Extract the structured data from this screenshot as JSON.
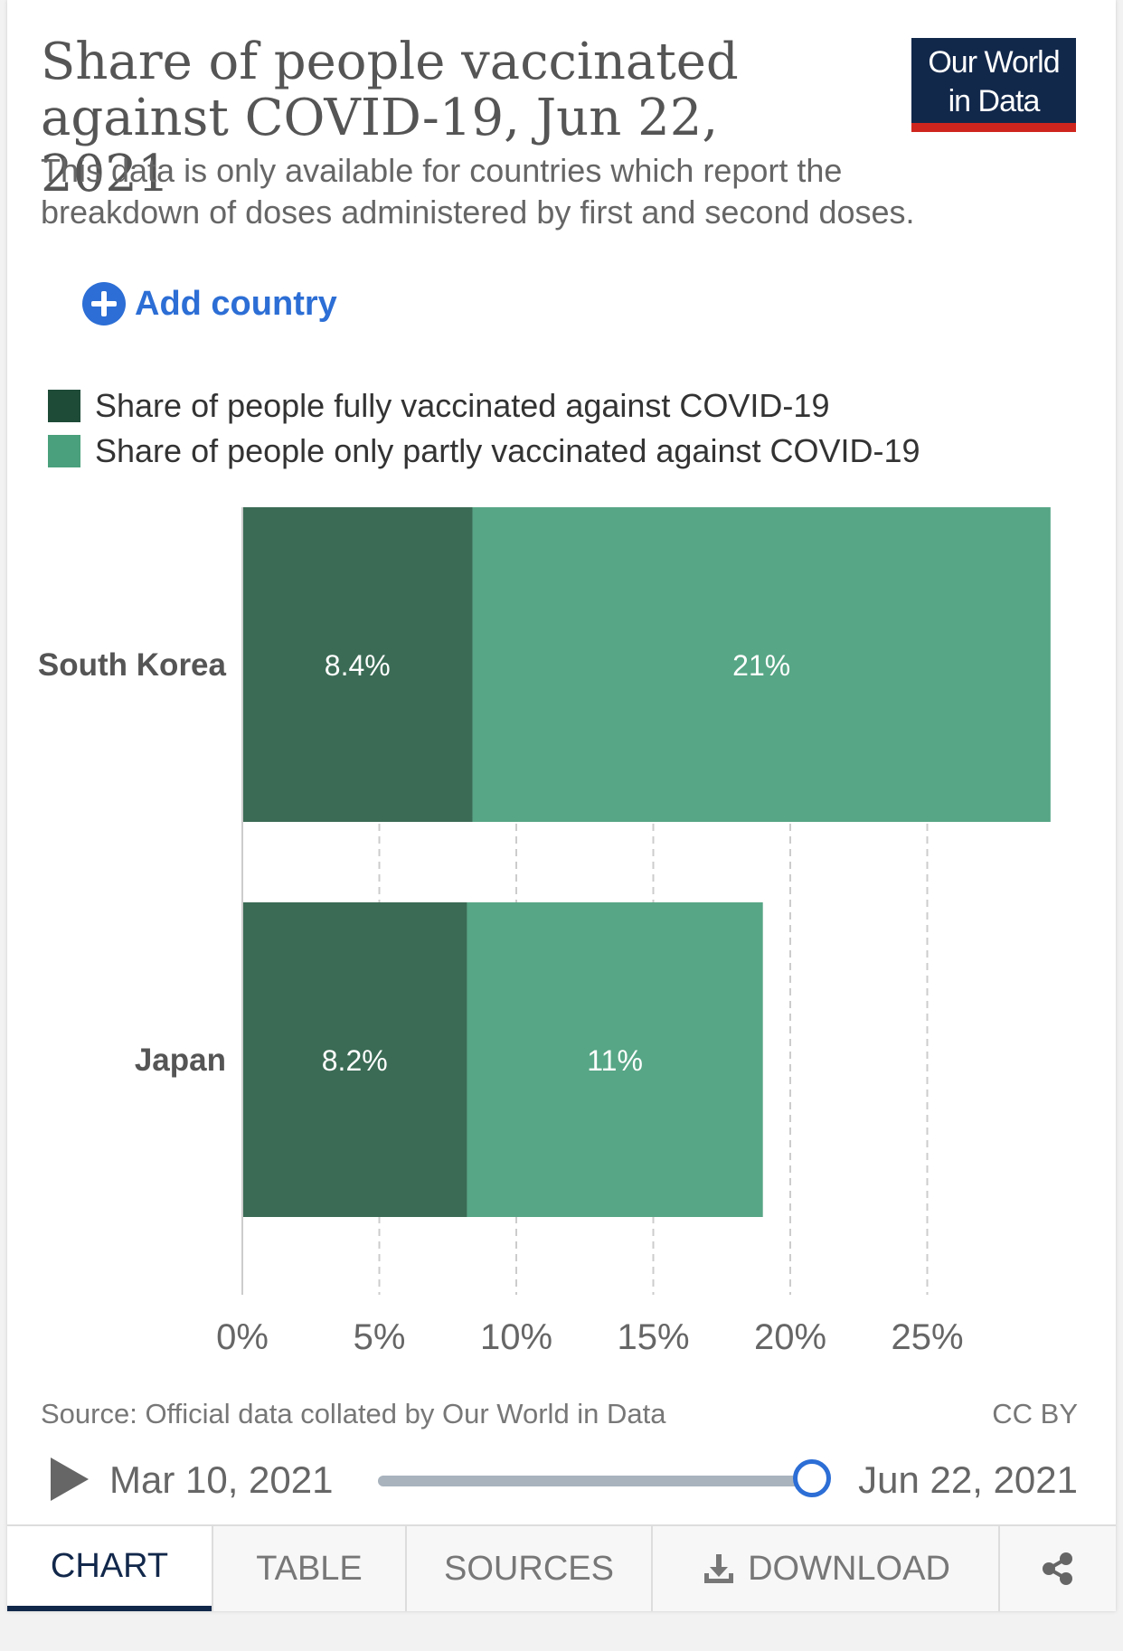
{
  "header": {
    "title": "Share of people vaccinated against COVID-19, Jun 22, 2021",
    "subtitle": "This data is only available for countries which report the breakdown of doses administered by first and second doses.",
    "logo_line1": "Our World",
    "logo_line2": "in Data"
  },
  "controls": {
    "add_country_label": "Add country",
    "add_icon": "plus-circle-icon"
  },
  "colors": {
    "fully": "#3b6b55",
    "partly": "#57a686",
    "fully_legend": "#1e4b38",
    "partly_legend": "#4aa07c",
    "accent": "#2c6ed5",
    "brand": "#12284b"
  },
  "chart_data": {
    "type": "bar",
    "orientation": "horizontal",
    "stacked": true,
    "categories": [
      "South Korea",
      "Japan"
    ],
    "series": [
      {
        "name": "Share of people fully vaccinated against COVID-19",
        "values": [
          8.4,
          8.2
        ],
        "labels": [
          "8.4%",
          "8.2%"
        ]
      },
      {
        "name": "Share of people only partly vaccinated against COVID-19",
        "values": [
          21.1,
          10.8
        ],
        "labels": [
          "21%",
          "11%"
        ]
      }
    ],
    "x_ticks": [
      0,
      5,
      10,
      15,
      20,
      25
    ],
    "x_tick_labels": [
      "0%",
      "5%",
      "10%",
      "15%",
      "20%",
      "25%"
    ],
    "xlim": [
      0,
      29.5
    ],
    "grid": "vertical-dashed",
    "legend_position": "top-left"
  },
  "footer": {
    "source": "Source: Official data collated by Our World in Data",
    "license": "CC BY"
  },
  "timeline": {
    "start_date": "Mar 10, 2021",
    "end_date": "Jun 22, 2021",
    "position": 1.0,
    "play_icon": "play-icon"
  },
  "tabs": [
    {
      "label": "CHART",
      "active": true
    },
    {
      "label": "TABLE",
      "active": false
    },
    {
      "label": "SOURCES",
      "active": false
    },
    {
      "label": "DOWNLOAD",
      "active": false,
      "icon": "download-icon"
    },
    {
      "label": "",
      "active": false,
      "icon": "share-icon"
    }
  ]
}
